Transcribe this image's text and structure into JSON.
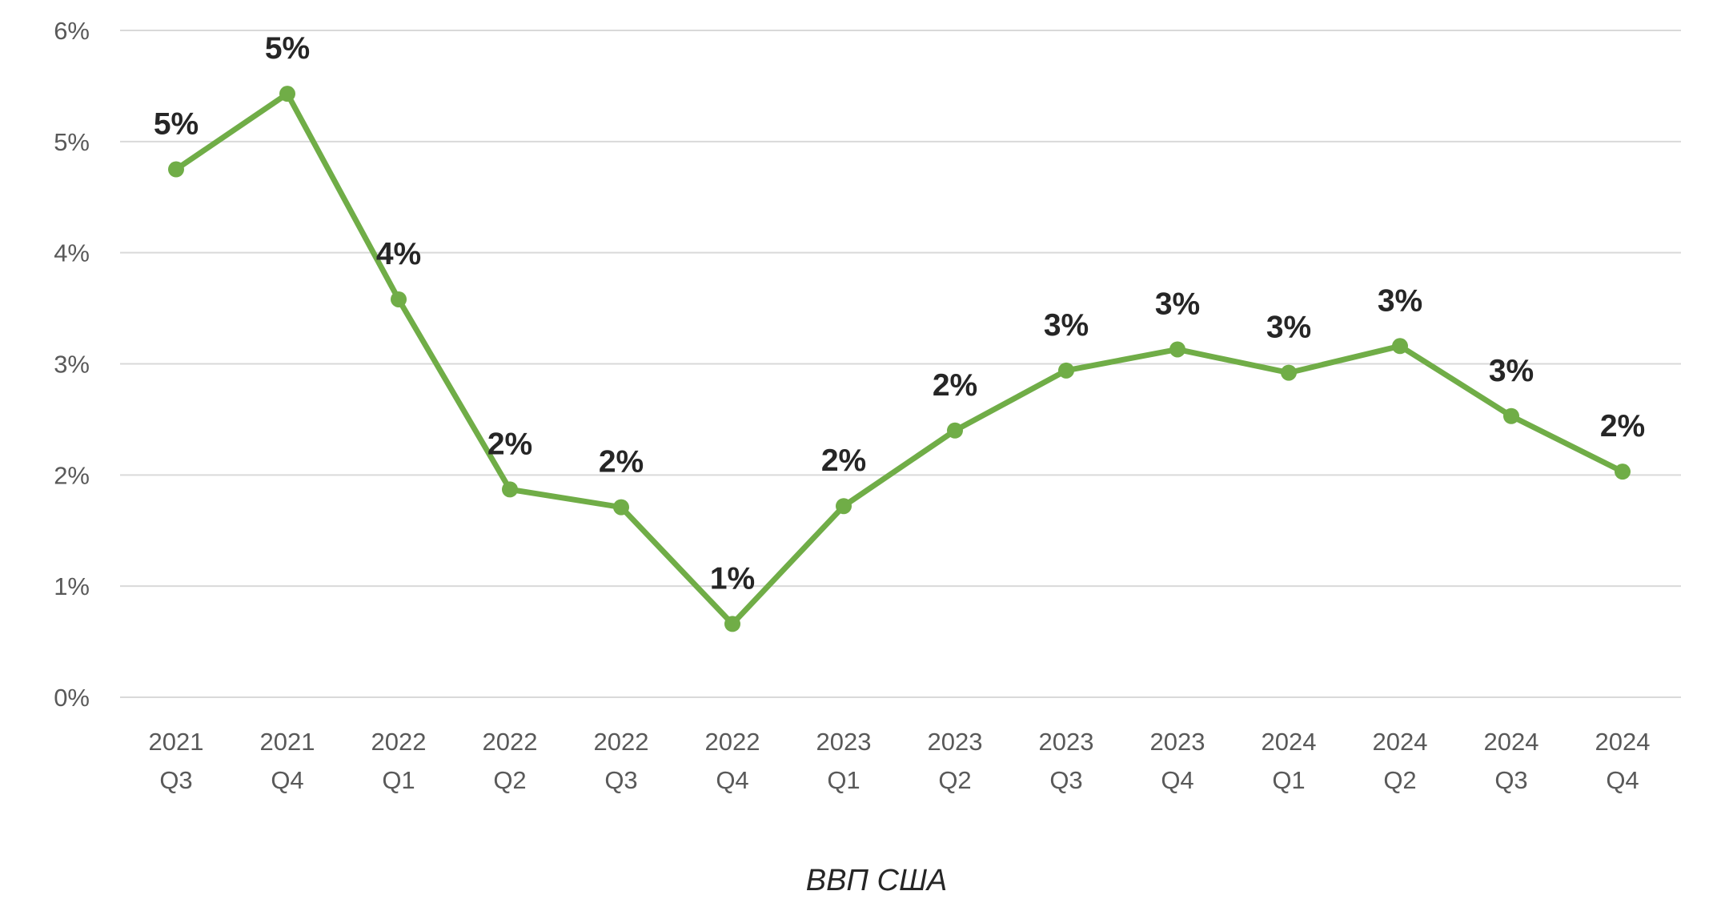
{
  "chart_data": {
    "type": "line",
    "categories": [
      [
        "2021",
        "Q3"
      ],
      [
        "2021",
        "Q4"
      ],
      [
        "2022",
        "Q1"
      ],
      [
        "2022",
        "Q2"
      ],
      [
        "2022",
        "Q3"
      ],
      [
        "2022",
        "Q4"
      ],
      [
        "2023",
        "Q1"
      ],
      [
        "2023",
        "Q2"
      ],
      [
        "2023",
        "Q3"
      ],
      [
        "2023",
        "Q4"
      ],
      [
        "2024",
        "Q1"
      ],
      [
        "2024",
        "Q2"
      ],
      [
        "2024",
        "Q3"
      ],
      [
        "2024",
        "Q4"
      ]
    ],
    "series": [
      {
        "name": "ВВП США",
        "color": "#70ad47",
        "values": [
          4.75,
          5.43,
          3.58,
          1.87,
          1.71,
          0.66,
          1.72,
          2.4,
          2.94,
          3.13,
          2.92,
          3.16,
          2.53,
          2.03
        ],
        "data_labels": [
          "5%",
          "5%",
          "4%",
          "2%",
          "2%",
          "1%",
          "2%",
          "2%",
          "3%",
          "3%",
          "3%",
          "3%",
          "3%",
          "2%"
        ]
      }
    ],
    "yticks": [
      "0%",
      "1%",
      "2%",
      "3%",
      "4%",
      "5%",
      "6%"
    ],
    "ylim": [
      0,
      6
    ],
    "grid": true,
    "legend": "bottom"
  }
}
